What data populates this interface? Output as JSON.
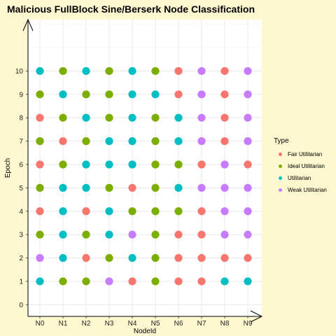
{
  "chart_data": {
    "type": "scatter",
    "title": "Malicious FullBlock Sine/Berserk Node Classification",
    "xlabel": "NodeId",
    "ylabel": "Epoch",
    "categories": [
      "N0",
      "N1",
      "N2",
      "N3",
      "N4",
      "N5",
      "N6",
      "N7",
      "N8",
      "N9"
    ],
    "y_ticks": [
      0,
      1,
      2,
      3,
      4,
      5,
      6,
      7,
      8,
      9,
      10
    ],
    "ylim": [
      -0.5,
      12.2
    ],
    "grid": true,
    "legend": {
      "title": "Type",
      "placement": "right",
      "entries": [
        {
          "name": "Fair Utilitarian",
          "color": "#F8766D"
        },
        {
          "name": "Ideal Utilitarian",
          "color": "#7CAE00"
        },
        {
          "name": "Utilitarian",
          "color": "#00BFC4"
        },
        {
          "name": "Weak Utilitarian",
          "color": "#C77CFF"
        }
      ]
    },
    "grid_values": {
      "10": [
        "Utilitarian",
        "Ideal Utilitarian",
        "Utilitarian",
        "Ideal Utilitarian",
        "Utilitarian",
        "Ideal Utilitarian",
        "Fair Utilitarian",
        "Weak Utilitarian",
        "Fair Utilitarian",
        "Weak Utilitarian"
      ],
      "9": [
        "Ideal Utilitarian",
        "Utilitarian",
        "Ideal Utilitarian",
        "Ideal Utilitarian",
        "Utilitarian",
        "Utilitarian",
        "Fair Utilitarian",
        "Weak Utilitarian",
        "Fair Utilitarian",
        "Weak Utilitarian"
      ],
      "8": [
        "Fair Utilitarian",
        "Ideal Utilitarian",
        "Utilitarian",
        "Ideal Utilitarian",
        "Utilitarian",
        "Ideal Utilitarian",
        "Utilitarian",
        "Weak Utilitarian",
        "Fair Utilitarian",
        "Weak Utilitarian"
      ],
      "7": [
        "Ideal Utilitarian",
        "Fair Utilitarian",
        "Ideal Utilitarian",
        "Utilitarian",
        "Utilitarian",
        "Ideal Utilitarian",
        "Utilitarian",
        "Weak Utilitarian",
        "Fair Utilitarian",
        "Weak Utilitarian"
      ],
      "6": [
        "Fair Utilitarian",
        "Ideal Utilitarian",
        "Utilitarian",
        "Utilitarian",
        "Utilitarian",
        "Ideal Utilitarian",
        "Ideal Utilitarian",
        "Fair Utilitarian",
        "Weak Utilitarian",
        "Fair Utilitarian"
      ],
      "5": [
        "Ideal Utilitarian",
        "Utilitarian",
        "Utilitarian",
        "Ideal Utilitarian",
        "Fair Utilitarian",
        "Ideal Utilitarian",
        "Utilitarian",
        "Weak Utilitarian",
        "Weak Utilitarian",
        "Weak Utilitarian"
      ],
      "4": [
        "Fair Utilitarian",
        "Utilitarian",
        "Fair Utilitarian",
        "Utilitarian",
        "Ideal Utilitarian",
        "Ideal Utilitarian",
        "Ideal Utilitarian",
        "Fair Utilitarian",
        "Weak Utilitarian",
        "Weak Utilitarian"
      ],
      "3": [
        "Ideal Utilitarian",
        "Utilitarian",
        "Ideal Utilitarian",
        "Utilitarian",
        "Weak Utilitarian",
        "Ideal Utilitarian",
        "Fair Utilitarian",
        "Fair Utilitarian",
        "Weak Utilitarian",
        "Weak Utilitarian"
      ],
      "2": [
        "Weak Utilitarian",
        "Utilitarian",
        "Fair Utilitarian",
        "Ideal Utilitarian",
        "Utilitarian",
        "Ideal Utilitarian",
        "Fair Utilitarian",
        "Fair Utilitarian",
        "Fair Utilitarian",
        "Fair Utilitarian"
      ],
      "1": [
        "Utilitarian",
        "Ideal Utilitarian",
        "Ideal Utilitarian",
        "Weak Utilitarian",
        "Fair Utilitarian",
        "Ideal Utilitarian",
        "Fair Utilitarian",
        "Fair Utilitarian",
        "Utilitarian",
        "Utilitarian"
      ]
    }
  }
}
